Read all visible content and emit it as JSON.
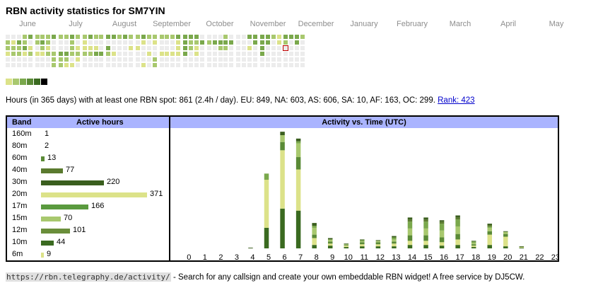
{
  "title": "RBN activity statistics for SM7YIN",
  "months": [
    "June",
    "July",
    "August",
    "September",
    "October",
    "November",
    "December",
    "January",
    "February",
    "March",
    "April",
    "May"
  ],
  "heatmap": {
    "colors": {
      "empty": "#ececec",
      "l1": "#dce289",
      "l2": "#a8c86e",
      "l3": "#7aa84c",
      "l4": "#5a8a36",
      "l5": "#3a6a20",
      "selected": "#c00000"
    },
    "weeks": [
      "022100",
      "012200",
      "032200",
      "223100",
      "301200",
      "220100",
      "232100",
      "221200",
      "300222",
      "200322",
      "200321",
      "322201",
      "201210",
      "211200",
      "301200",
      "201300",
      "200300",
      "303200",
      "300100",
      "200000",
      "300000",
      "201000",
      "201000",
      "310001",
      "200100",
      "210022",
      "200100",
      "200100",
      "200100",
      "311100",
      "333300",
      "322000",
      "321100",
      "030000",
      "020000",
      "030000",
      "032000",
      "232000",
      "030000",
      "000000",
      "000000",
      "301000",
      "330000",
      "333300",
      "330000",
      "200000",
      "110000",
      "320000",
      "300000",
      "330000",
      "200000"
    ],
    "selected_week": 47
  },
  "legend_colors": [
    "#dce289",
    "#a8c86e",
    "#7aa84c",
    "#5a8a36",
    "#3a6a20",
    "#000000"
  ],
  "summary": {
    "text": "Hours (in 365 days) with at least one RBN spot: 861 (2.4h / day). EU: 849, NA: 603, AS: 606, SA: 10, AF: 163, OC: 299.",
    "rank_label": "Rank: 423"
  },
  "band_table": {
    "col_band": "Band",
    "col_hours": "Active hours",
    "rows": [
      {
        "band": "160m",
        "hours": 1,
        "color": "#dce289"
      },
      {
        "band": "80m",
        "hours": 2,
        "color": "#3a6a20"
      },
      {
        "band": "60m",
        "hours": 13,
        "color": "#5a8a36"
      },
      {
        "band": "40m",
        "hours": 77,
        "color": "#5a7a2e"
      },
      {
        "band": "30m",
        "hours": 220,
        "color": "#3a5e1e"
      },
      {
        "band": "20m",
        "hours": 371,
        "color": "#dce289"
      },
      {
        "band": "17m",
        "hours": 166,
        "color": "#5a9a3e"
      },
      {
        "band": "15m",
        "hours": 70,
        "color": "#a8c86e"
      },
      {
        "band": "12m",
        "hours": 101,
        "color": "#6a8e3a"
      },
      {
        "band": "10m",
        "hours": 44,
        "color": "#3a6a20"
      },
      {
        "band": "6m",
        "hours": 9,
        "color": "#dce289"
      }
    ]
  },
  "chart_data": {
    "type": "bar",
    "title": "Activity vs. Time (UTC)",
    "categories": [
      "0",
      "1",
      "2",
      "3",
      "4",
      "5",
      "6",
      "7",
      "8",
      "9",
      "10",
      "11",
      "12",
      "13",
      "14",
      "15",
      "16",
      "17",
      "18",
      "19",
      "20",
      "21",
      "22",
      "23"
    ],
    "series": [
      {
        "color": "#3a6a20",
        "values": [
          0,
          0,
          0,
          0,
          0,
          30,
          58,
          55,
          5,
          4,
          2,
          3,
          3,
          3,
          5,
          5,
          4,
          5,
          2,
          5,
          3,
          1,
          0,
          0
        ]
      },
      {
        "color": "#dce289",
        "values": [
          0,
          0,
          0,
          0,
          0,
          70,
          85,
          60,
          10,
          3,
          2,
          3,
          3,
          4,
          6,
          6,
          5,
          8,
          2,
          15,
          14,
          1,
          0,
          0
        ]
      },
      {
        "color": "#5a8a36",
        "values": [
          0,
          0,
          0,
          0,
          0,
          0,
          12,
          18,
          5,
          3,
          1,
          3,
          3,
          3,
          8,
          8,
          7,
          8,
          2,
          5,
          4,
          0,
          0,
          0
        ]
      },
      {
        "color": "#a8c86e",
        "values": [
          0,
          0,
          0,
          0,
          0,
          0,
          10,
          20,
          10,
          3,
          1,
          1,
          2,
          3,
          10,
          10,
          10,
          11,
          2,
          5,
          3,
          0,
          0,
          0
        ]
      },
      {
        "color": "#7aa84c",
        "values": [
          0,
          0,
          0,
          0,
          0,
          9,
          0,
          3,
          3,
          0,
          0,
          2,
          0,
          3,
          10,
          10,
          10,
          10,
          2,
          2,
          0,
          0,
          0,
          0
        ]
      },
      {
        "color": "#5a7a2e",
        "values": [
          0,
          0,
          0,
          0,
          0,
          0,
          0,
          0,
          0,
          0,
          0,
          0,
          0,
          0,
          3,
          3,
          3,
          3,
          0,
          2,
          0,
          0,
          0,
          0
        ]
      },
      {
        "color": "#3a5e1e",
        "values": [
          0,
          0,
          0,
          0,
          1,
          0,
          5,
          4,
          4,
          2,
          1,
          1,
          1,
          2,
          3,
          3,
          2,
          3,
          1,
          2,
          1,
          1,
          0,
          0
        ]
      }
    ],
    "ylim": [
      0,
      165
    ]
  },
  "footer": {
    "url": "https://rbn.telegraphy.de/activity/",
    "text": " - Search for any callsign and create your own embeddable RBN widget! A free service by DJ5CW."
  }
}
